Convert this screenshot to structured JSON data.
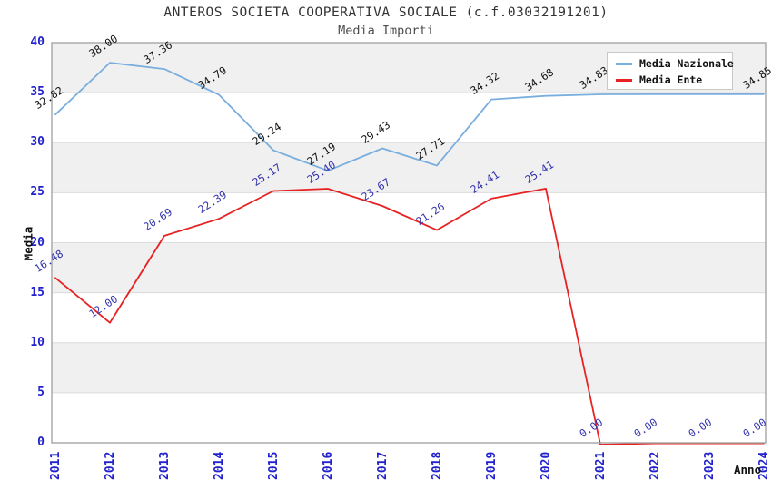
{
  "title": "ANTEROS SOCIETA COOPERATIVA SOCIALE (c.f.03032191201)",
  "subtitle": "Media Importi",
  "legend": {
    "items": [
      {
        "label": "Media Nazionale",
        "color": "#7aaede"
      },
      {
        "label": "Media Ente",
        "color": "#e62222"
      }
    ]
  },
  "axes": {
    "y_title": "Media",
    "x_title": "Anno",
    "y_ticks": [
      "0",
      "5",
      "10",
      "15",
      "20",
      "25",
      "30",
      "35",
      "40"
    ],
    "x_ticks": [
      "2011",
      "2012",
      "2013",
      "2014",
      "2015",
      "2016",
      "2017",
      "2018",
      "2019",
      "2020",
      "2021",
      "2022",
      "2023",
      "2024"
    ]
  },
  "colors": {
    "band_gray": "#f0f0f0",
    "gridline": "#dcdcdc",
    "plot_border": "#a6a6a6",
    "tick_blue": "#2222cc",
    "nazionale_line": "#7aaede",
    "ente_line": "#e62222",
    "nazionale_label": "#111111",
    "ente_label": "#3333aa"
  },
  "chart_data": {
    "type": "line",
    "title": "ANTEROS SOCIETA COOPERATIVA SOCIALE (c.f.03032191201)",
    "subtitle": "Media Importi",
    "xlabel": "Anno",
    "ylabel": "Media",
    "ylim": [
      0,
      40
    ],
    "y_tick_step": 5,
    "grid": "horizontal gray bands every 5 units, legend top-right",
    "x": [
      2011,
      2012,
      2013,
      2014,
      2015,
      2016,
      2017,
      2018,
      2019,
      2020,
      2021,
      2022,
      2023,
      2024
    ],
    "series": [
      {
        "name": "Media Nazionale",
        "color": "#7aaede",
        "label_color": "#111111",
        "values": [
          32.82,
          38.0,
          37.36,
          34.79,
          29.24,
          27.19,
          29.43,
          27.71,
          34.32,
          34.68,
          34.83,
          34.84,
          34.84,
          34.85
        ],
        "labels": [
          "32.82",
          "38.00",
          "37.36",
          "34.79",
          "29.24",
          "27.19",
          "29.43",
          "27.71",
          "34.32",
          "34.68",
          "34.83",
          "",
          "",
          "34.85"
        ]
      },
      {
        "name": "Media Ente",
        "color": "#e62222",
        "label_color": "#3333aa",
        "values": [
          16.48,
          12.0,
          20.69,
          22.39,
          25.17,
          25.4,
          23.67,
          21.26,
          24.41,
          25.41,
          0.0,
          0.0,
          0.0,
          0.0
        ],
        "labels": [
          "16.48",
          "12.00",
          "20.69",
          "22.39",
          "25.17",
          "25.40",
          "23.67",
          "21.26",
          "24.41",
          "25.41",
          "0.00",
          "0.00",
          "0.00",
          "0.00"
        ]
      }
    ]
  }
}
